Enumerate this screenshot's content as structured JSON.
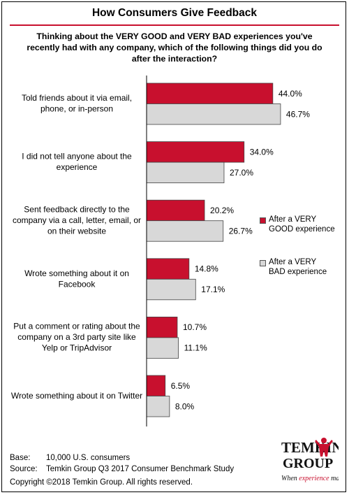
{
  "chart_data": {
    "type": "bar",
    "orientation": "horizontal",
    "title": "How Consumers Give Feedback",
    "subtitle": "Thinking about the VERY GOOD and VERY BAD experiences you've recently had with any company, which of the following things did you do after the interaction?",
    "categories": [
      [
        "Told friends about it via email,",
        "phone, or in-person"
      ],
      [
        "I did not tell anyone about the",
        "experience"
      ],
      [
        "Sent feedback directly to the",
        "company via a call, letter, email, or",
        "on their website"
      ],
      [
        "Wrote something about it on",
        "Facebook"
      ],
      [
        "Put a comment or rating about the",
        "company on a 3rd party site like",
        "Yelp or TripAdvisor"
      ],
      [
        "Wrote something about it on Twitter"
      ]
    ],
    "series": [
      {
        "name": [
          "After a VERY",
          "GOOD experience"
        ],
        "color": "#c8102e",
        "values": [
          44.0,
          34.0,
          20.2,
          14.8,
          10.7,
          6.5
        ],
        "labels": [
          "44.0%",
          "34.0%",
          "20.2%",
          "14.8%",
          "10.7%",
          "6.5%"
        ]
      },
      {
        "name": [
          "After a VERY",
          "BAD experience"
        ],
        "color": "#d8d8d8",
        "values": [
          46.7,
          27.0,
          26.7,
          17.1,
          11.1,
          8.0
        ],
        "labels": [
          "46.7%",
          "27.0%",
          "26.7%",
          "17.1%",
          "11.1%",
          "8.0%"
        ]
      }
    ],
    "xlim": [
      0,
      100
    ],
    "grid": false,
    "legend_position": "right"
  },
  "footer": {
    "base_key": "Base:",
    "base_value": "10,000 U.S. consumers",
    "source_key": "Source:",
    "source_value": "Temkin Group Q3 2017 Consumer Benchmark Study",
    "copyright": "Copyright ©2018 Temkin Group. All rights reserved."
  },
  "logo": {
    "line1": "TEMKIN",
    "line2": "GROUP",
    "tagline_a": "When ",
    "tagline_b": "experience",
    "tagline_c": " matters"
  }
}
